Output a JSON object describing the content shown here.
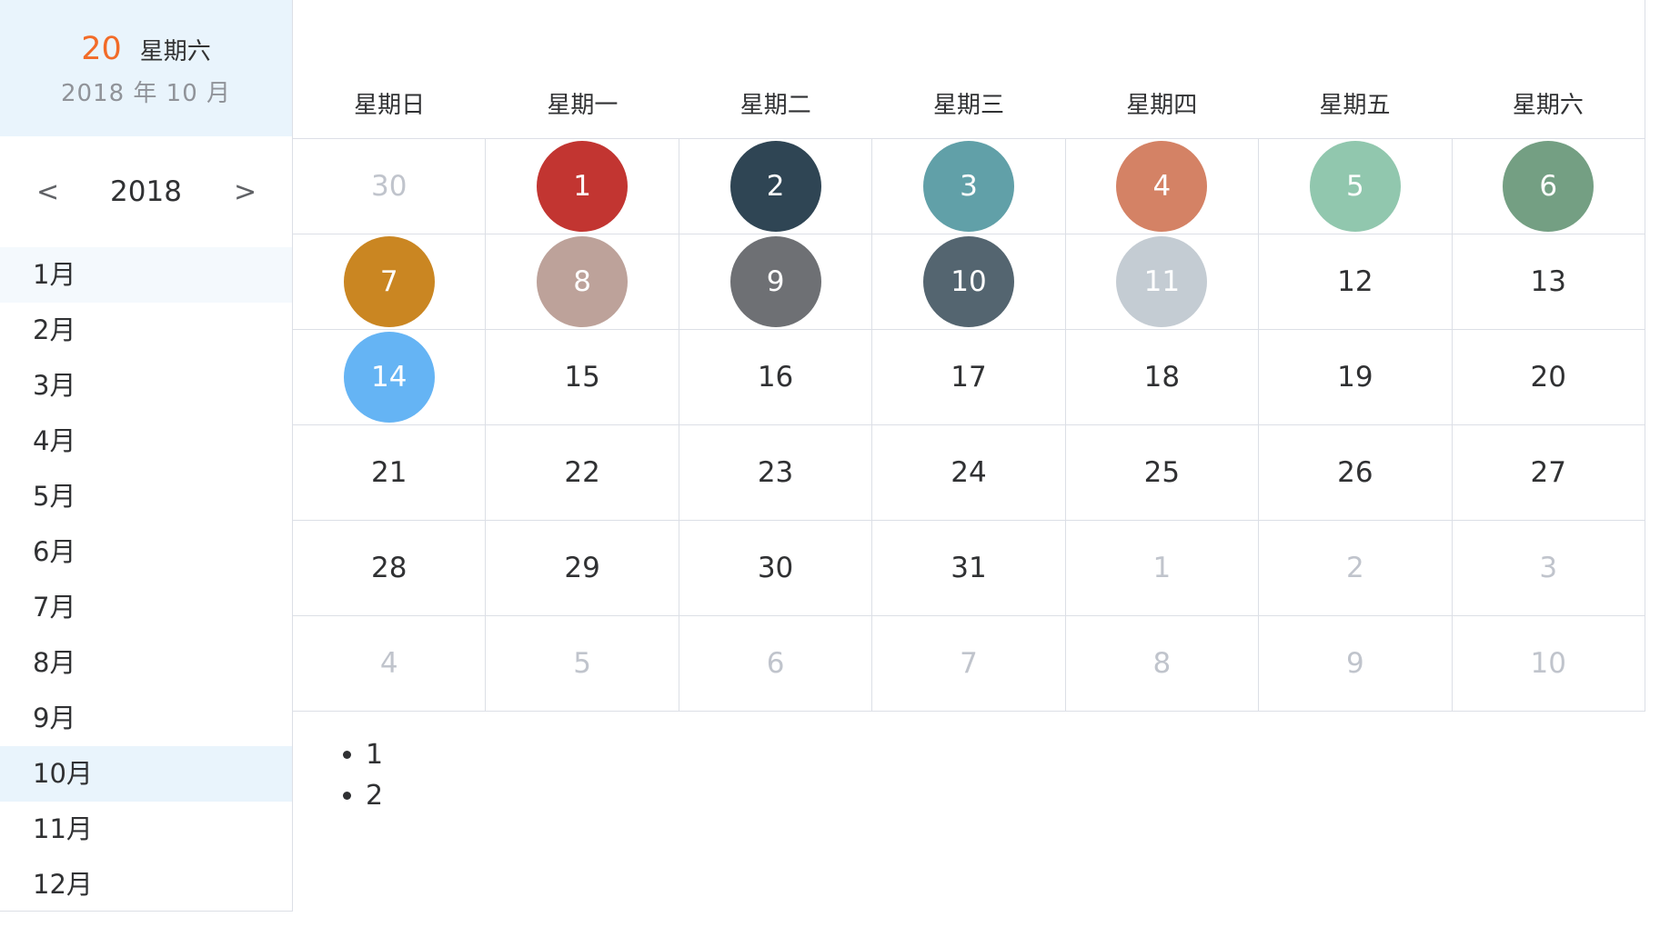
{
  "today": {
    "day": "20",
    "weekday": "星期六",
    "year_month": "2018 年 10 月"
  },
  "year_nav": {
    "prev": "<",
    "year": "2018",
    "next": ">"
  },
  "months": [
    "1月",
    "2月",
    "3月",
    "4月",
    "5月",
    "6月",
    "7月",
    "8月",
    "9月",
    "10月",
    "11月",
    "12月"
  ],
  "hover_month_index": 0,
  "active_month_index": 9,
  "weekdays": [
    "星期日",
    "星期一",
    "星期二",
    "星期三",
    "星期四",
    "星期五",
    "星期六"
  ],
  "weeks": [
    [
      {
        "d": "30",
        "other": true
      },
      {
        "d": "1",
        "color": "#c23531"
      },
      {
        "d": "2",
        "color": "#2f4554"
      },
      {
        "d": "3",
        "color": "#61a0a8"
      },
      {
        "d": "4",
        "color": "#d48265"
      },
      {
        "d": "5",
        "color": "#91c7ae"
      },
      {
        "d": "6",
        "color": "#749f83"
      }
    ],
    [
      {
        "d": "7",
        "color": "#ca8622"
      },
      {
        "d": "8",
        "color": "#bda29a"
      },
      {
        "d": "9",
        "color": "#6e7074"
      },
      {
        "d": "10",
        "color": "#546570"
      },
      {
        "d": "11",
        "color": "#c4ccd3"
      },
      {
        "d": "12"
      },
      {
        "d": "13"
      }
    ],
    [
      {
        "d": "14",
        "color": "#65b4f4"
      },
      {
        "d": "15"
      },
      {
        "d": "16"
      },
      {
        "d": "17"
      },
      {
        "d": "18"
      },
      {
        "d": "19"
      },
      {
        "d": "20"
      }
    ],
    [
      {
        "d": "21"
      },
      {
        "d": "22"
      },
      {
        "d": "23"
      },
      {
        "d": "24"
      },
      {
        "d": "25"
      },
      {
        "d": "26"
      },
      {
        "d": "27"
      }
    ],
    [
      {
        "d": "28"
      },
      {
        "d": "29"
      },
      {
        "d": "30"
      },
      {
        "d": "31"
      },
      {
        "d": "1",
        "other": true
      },
      {
        "d": "2",
        "other": true
      },
      {
        "d": "3",
        "other": true
      }
    ],
    [
      {
        "d": "4",
        "other": true
      },
      {
        "d": "5",
        "other": true
      },
      {
        "d": "6",
        "other": true
      },
      {
        "d": "7",
        "other": true
      },
      {
        "d": "8",
        "other": true
      },
      {
        "d": "9",
        "other": true
      },
      {
        "d": "10",
        "other": true
      }
    ]
  ],
  "notes": [
    "1",
    "2"
  ]
}
